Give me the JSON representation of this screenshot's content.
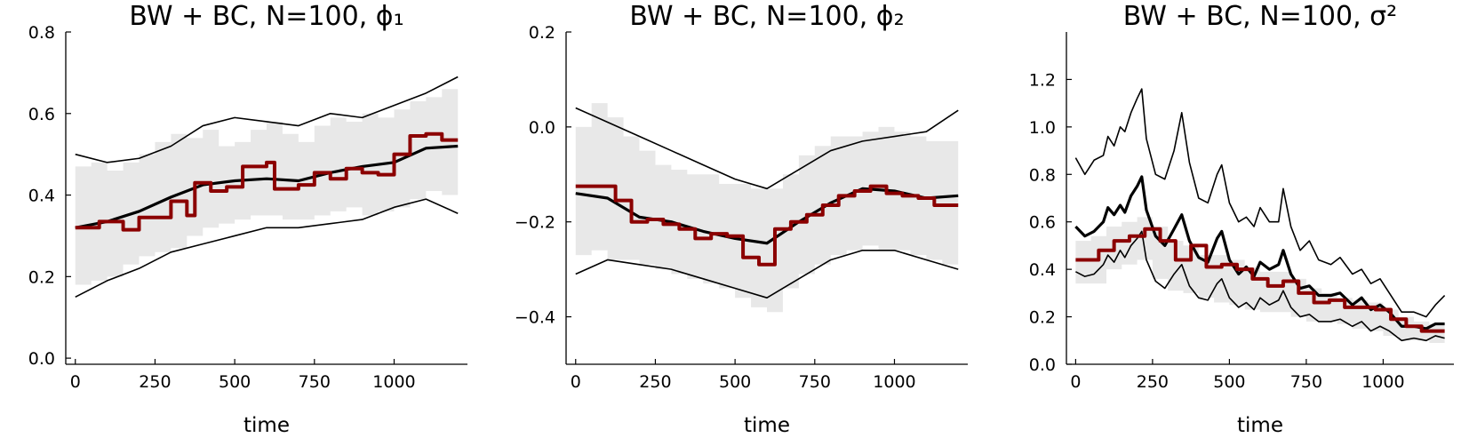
{
  "chart_data": [
    {
      "type": "line",
      "title": "BW + BC, N=100, ϕ₁",
      "xlabel": "time",
      "ylabel": "",
      "xlim": [
        -30,
        1230
      ],
      "ylim": [
        -0.015,
        0.8
      ],
      "xticks": [
        0,
        250,
        500,
        750,
        1000
      ],
      "yticks": [
        0.0,
        0.2,
        0.4,
        0.6,
        0.8
      ],
      "ytick_labels": [
        "0.0",
        "0.2",
        "0.4",
        "0.6",
        "0.8"
      ],
      "grid": false,
      "legend": "none",
      "series": [
        {
          "role": "upper",
          "style": "thin-black",
          "x": [
            0,
            100,
            200,
            300,
            400,
            500,
            600,
            700,
            800,
            900,
            1000,
            1100,
            1200
          ],
          "y": [
            0.5,
            0.48,
            0.49,
            0.52,
            0.57,
            0.59,
            0.58,
            0.57,
            0.6,
            0.59,
            0.62,
            0.65,
            0.69
          ]
        },
        {
          "role": "mean",
          "style": "thick-black",
          "x": [
            0,
            100,
            200,
            300,
            400,
            500,
            600,
            700,
            800,
            900,
            1000,
            1100,
            1200
          ],
          "y": [
            0.32,
            0.335,
            0.36,
            0.395,
            0.425,
            0.435,
            0.44,
            0.435,
            0.455,
            0.47,
            0.48,
            0.515,
            0.52
          ]
        },
        {
          "role": "lower",
          "style": "thin-black",
          "x": [
            0,
            100,
            200,
            300,
            400,
            500,
            600,
            700,
            800,
            900,
            1000,
            1100,
            1200
          ],
          "y": [
            0.15,
            0.19,
            0.22,
            0.26,
            0.28,
            0.3,
            0.32,
            0.32,
            0.33,
            0.34,
            0.37,
            0.39,
            0.355
          ]
        },
        {
          "role": "truth",
          "style": "step-red",
          "x": [
            0,
            75,
            150,
            200,
            250,
            300,
            325,
            350,
            375,
            400,
            425,
            450,
            475,
            500,
            525,
            550,
            600,
            625,
            650,
            700,
            750,
            800,
            850,
            900,
            950,
            1000,
            1050,
            1100,
            1150,
            1200
          ],
          "y": [
            0.32,
            0.335,
            0.315,
            0.345,
            0.345,
            0.385,
            0.385,
            0.35,
            0.43,
            0.43,
            0.41,
            0.41,
            0.42,
            0.42,
            0.47,
            0.47,
            0.48,
            0.415,
            0.415,
            0.425,
            0.455,
            0.44,
            0.465,
            0.455,
            0.45,
            0.5,
            0.545,
            0.55,
            0.535,
            0.535
          ]
        }
      ],
      "band": {
        "x": [
          0,
          50,
          100,
          150,
          200,
          250,
          300,
          350,
          400,
          450,
          500,
          550,
          600,
          650,
          700,
          750,
          800,
          850,
          900,
          950,
          1000,
          1050,
          1100,
          1150,
          1200
        ],
        "lower": [
          0.18,
          0.19,
          0.2,
          0.23,
          0.25,
          0.26,
          0.27,
          0.3,
          0.32,
          0.33,
          0.34,
          0.35,
          0.35,
          0.34,
          0.34,
          0.35,
          0.36,
          0.37,
          0.35,
          0.36,
          0.37,
          0.39,
          0.41,
          0.4,
          0.41
        ],
        "upper": [
          0.47,
          0.48,
          0.46,
          0.48,
          0.5,
          0.53,
          0.55,
          0.54,
          0.56,
          0.52,
          0.53,
          0.56,
          0.58,
          0.55,
          0.53,
          0.57,
          0.59,
          0.58,
          0.6,
          0.59,
          0.61,
          0.63,
          0.64,
          0.66,
          0.67
        ]
      }
    },
    {
      "type": "line",
      "title": "BW + BC, N=100, ϕ₂",
      "xlabel": "time",
      "ylabel": "",
      "xlim": [
        -30,
        1230
      ],
      "ylim": [
        -0.5,
        0.2
      ],
      "xticks": [
        0,
        250,
        500,
        750,
        1000
      ],
      "yticks": [
        -0.4,
        -0.2,
        0.0,
        0.2
      ],
      "ytick_labels": [
        "−0.4",
        "−0.2",
        "0.0",
        "0.2"
      ],
      "grid": false,
      "legend": "none",
      "series": [
        {
          "role": "upper",
          "style": "thin-black",
          "x": [
            0,
            100,
            200,
            300,
            400,
            500,
            600,
            700,
            800,
            900,
            1000,
            1100,
            1200
          ],
          "y": [
            0.04,
            0.01,
            -0.02,
            -0.05,
            -0.08,
            -0.11,
            -0.13,
            -0.09,
            -0.05,
            -0.03,
            -0.02,
            -0.01,
            0.035
          ]
        },
        {
          "role": "mean",
          "style": "thick-black",
          "x": [
            0,
            100,
            200,
            300,
            400,
            500,
            600,
            700,
            800,
            900,
            1000,
            1100,
            1200
          ],
          "y": [
            -0.14,
            -0.15,
            -0.19,
            -0.2,
            -0.22,
            -0.235,
            -0.245,
            -0.2,
            -0.16,
            -0.13,
            -0.135,
            -0.15,
            -0.145
          ]
        },
        {
          "role": "lower",
          "style": "thin-black",
          "x": [
            0,
            100,
            200,
            300,
            400,
            500,
            600,
            700,
            800,
            900,
            1000,
            1100,
            1200
          ],
          "y": [
            -0.31,
            -0.28,
            -0.29,
            -0.3,
            -0.32,
            -0.34,
            -0.36,
            -0.32,
            -0.28,
            -0.26,
            -0.26,
            -0.28,
            -0.3
          ]
        },
        {
          "role": "truth",
          "style": "step-red",
          "x": [
            0,
            125,
            175,
            225,
            275,
            325,
            375,
            425,
            475,
            525,
            575,
            625,
            675,
            725,
            775,
            825,
            875,
            925,
            975,
            1025,
            1075,
            1125,
            1200
          ],
          "y": [
            -0.125,
            -0.155,
            -0.2,
            -0.195,
            -0.205,
            -0.215,
            -0.235,
            -0.225,
            -0.23,
            -0.275,
            -0.29,
            -0.215,
            -0.2,
            -0.185,
            -0.165,
            -0.145,
            -0.135,
            -0.125,
            -0.14,
            -0.145,
            -0.15,
            -0.165,
            -0.165
          ]
        }
      ],
      "band": {
        "x": [
          0,
          50,
          100,
          150,
          200,
          250,
          300,
          350,
          400,
          450,
          500,
          550,
          600,
          650,
          700,
          750,
          800,
          850,
          900,
          950,
          1000,
          1050,
          1100,
          1150,
          1200
        ],
        "lower": [
          -0.27,
          -0.26,
          -0.28,
          -0.28,
          -0.29,
          -0.3,
          -0.31,
          -0.32,
          -0.33,
          -0.34,
          -0.36,
          -0.38,
          -0.39,
          -0.34,
          -0.31,
          -0.29,
          -0.27,
          -0.26,
          -0.25,
          -0.26,
          -0.26,
          -0.27,
          -0.28,
          -0.29,
          -0.3
        ],
        "upper": [
          0.0,
          0.05,
          0.02,
          -0.02,
          -0.05,
          -0.08,
          -0.09,
          -0.1,
          -0.1,
          -0.12,
          -0.12,
          -0.13,
          -0.13,
          -0.1,
          -0.06,
          -0.04,
          -0.02,
          -0.02,
          -0.01,
          0.0,
          -0.01,
          -0.02,
          -0.03,
          -0.03,
          -0.03
        ]
      }
    },
    {
      "type": "line",
      "title": "BW + BC, N=100, σ²",
      "xlabel": "time",
      "ylabel": "",
      "xlim": [
        -30,
        1230
      ],
      "ylim": [
        0.0,
        1.4
      ],
      "xticks": [
        0,
        250,
        500,
        750,
        1000
      ],
      "yticks": [
        0.0,
        0.2,
        0.4,
        0.6,
        0.8,
        1.0,
        1.2
      ],
      "ytick_labels": [
        "0.0",
        "0.2",
        "0.4",
        "0.6",
        "0.8",
        "1.0",
        "1.2"
      ],
      "grid": false,
      "legend": "none",
      "series": [
        {
          "role": "upper",
          "style": "thin-black",
          "x": [
            0,
            30,
            60,
            90,
            105,
            125,
            145,
            160,
            180,
            200,
            215,
            230,
            260,
            290,
            320,
            345,
            370,
            400,
            430,
            460,
            475,
            500,
            530,
            555,
            580,
            600,
            630,
            660,
            675,
            700,
            730,
            760,
            790,
            830,
            860,
            900,
            930,
            960,
            990,
            1020,
            1060,
            1100,
            1140,
            1170,
            1200
          ],
          "y": [
            0.87,
            0.8,
            0.86,
            0.88,
            0.96,
            0.92,
            1.0,
            0.98,
            1.06,
            1.12,
            1.16,
            0.95,
            0.8,
            0.78,
            0.9,
            1.06,
            0.85,
            0.7,
            0.68,
            0.8,
            0.84,
            0.68,
            0.6,
            0.62,
            0.58,
            0.66,
            0.6,
            0.6,
            0.74,
            0.58,
            0.48,
            0.52,
            0.44,
            0.42,
            0.45,
            0.38,
            0.4,
            0.34,
            0.36,
            0.3,
            0.22,
            0.22,
            0.2,
            0.25,
            0.29
          ]
        },
        {
          "role": "mean",
          "style": "thick-black",
          "x": [
            0,
            30,
            60,
            90,
            105,
            125,
            145,
            160,
            180,
            200,
            215,
            230,
            260,
            290,
            320,
            345,
            370,
            400,
            430,
            460,
            475,
            500,
            530,
            555,
            580,
            600,
            630,
            660,
            675,
            700,
            730,
            760,
            790,
            830,
            860,
            900,
            930,
            960,
            990,
            1020,
            1060,
            1100,
            1140,
            1170,
            1200
          ],
          "y": [
            0.58,
            0.54,
            0.56,
            0.6,
            0.66,
            0.63,
            0.67,
            0.64,
            0.71,
            0.75,
            0.79,
            0.65,
            0.54,
            0.5,
            0.57,
            0.63,
            0.52,
            0.45,
            0.43,
            0.53,
            0.56,
            0.44,
            0.38,
            0.41,
            0.37,
            0.43,
            0.4,
            0.42,
            0.48,
            0.38,
            0.32,
            0.33,
            0.29,
            0.29,
            0.3,
            0.25,
            0.28,
            0.23,
            0.25,
            0.22,
            0.16,
            0.16,
            0.15,
            0.17,
            0.17
          ]
        },
        {
          "role": "lower",
          "style": "thin-black",
          "x": [
            0,
            30,
            60,
            90,
            105,
            125,
            145,
            160,
            180,
            200,
            215,
            230,
            260,
            290,
            320,
            345,
            370,
            400,
            430,
            460,
            475,
            500,
            530,
            555,
            580,
            600,
            630,
            660,
            675,
            700,
            730,
            760,
            790,
            830,
            860,
            900,
            930,
            960,
            990,
            1020,
            1060,
            1100,
            1140,
            1170,
            1200
          ],
          "y": [
            0.39,
            0.37,
            0.38,
            0.42,
            0.46,
            0.43,
            0.48,
            0.45,
            0.5,
            0.53,
            0.56,
            0.44,
            0.35,
            0.32,
            0.38,
            0.42,
            0.33,
            0.28,
            0.27,
            0.34,
            0.36,
            0.28,
            0.24,
            0.26,
            0.23,
            0.28,
            0.25,
            0.27,
            0.31,
            0.24,
            0.2,
            0.21,
            0.18,
            0.18,
            0.19,
            0.16,
            0.18,
            0.14,
            0.16,
            0.14,
            0.1,
            0.11,
            0.1,
            0.12,
            0.11
          ]
        },
        {
          "role": "truth",
          "style": "step-red",
          "x": [
            0,
            75,
            125,
            175,
            225,
            275,
            325,
            375,
            425,
            475,
            525,
            575,
            625,
            675,
            725,
            775,
            825,
            875,
            925,
            975,
            1025,
            1075,
            1125,
            1200
          ],
          "y": [
            0.44,
            0.48,
            0.52,
            0.54,
            0.57,
            0.52,
            0.44,
            0.5,
            0.41,
            0.42,
            0.4,
            0.36,
            0.33,
            0.35,
            0.3,
            0.26,
            0.27,
            0.24,
            0.24,
            0.23,
            0.19,
            0.16,
            0.14,
            0.14
          ]
        }
      ],
      "band": {
        "x": [
          0,
          50,
          100,
          150,
          200,
          250,
          300,
          350,
          400,
          450,
          500,
          550,
          600,
          650,
          700,
          750,
          800,
          850,
          900,
          950,
          1000,
          1050,
          1100,
          1150,
          1200
        ],
        "lower": [
          0.34,
          0.34,
          0.4,
          0.42,
          0.44,
          0.36,
          0.31,
          0.3,
          0.28,
          0.26,
          0.25,
          0.23,
          0.22,
          0.22,
          0.2,
          0.18,
          0.18,
          0.17,
          0.15,
          0.14,
          0.12,
          0.1,
          0.1,
          0.09,
          0.09
        ],
        "upper": [
          0.52,
          0.54,
          0.58,
          0.6,
          0.62,
          0.58,
          0.52,
          0.5,
          0.46,
          0.46,
          0.44,
          0.41,
          0.39,
          0.39,
          0.36,
          0.32,
          0.3,
          0.28,
          0.27,
          0.26,
          0.23,
          0.2,
          0.18,
          0.17,
          0.16
        ]
      }
    }
  ]
}
